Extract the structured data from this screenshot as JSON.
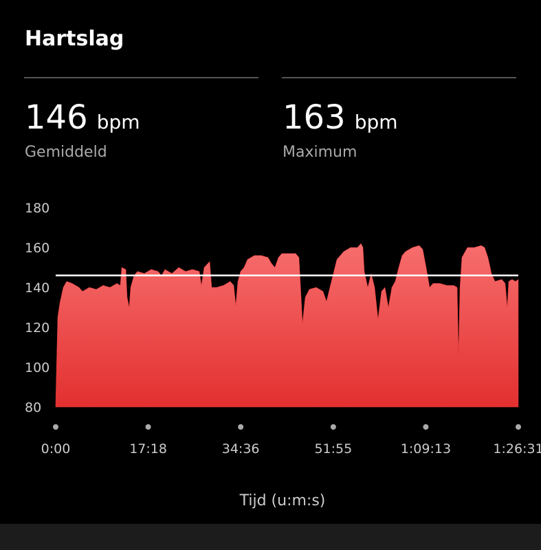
{
  "header": {
    "title": "Hartslag"
  },
  "stats": [
    {
      "value": 146,
      "unit": "bpm",
      "label": "Gemiddeld"
    },
    {
      "value": 163,
      "unit": "bpm",
      "label": "Maximum"
    }
  ],
  "chart_data": {
    "type": "area",
    "x_label": "Tijd (u:m:s)",
    "color": "#e8393b",
    "xlim": [
      0,
      5191
    ],
    "xticks": [
      {
        "value": 0,
        "label": "0:00"
      },
      {
        "value": 1038,
        "label": "17:18"
      },
      {
        "value": 2076,
        "label": "34:36"
      },
      {
        "value": 3115,
        "label": "51:55"
      },
      {
        "value": 4153,
        "label": "1:09:13"
      },
      {
        "value": 5191,
        "label": "1:26:31"
      }
    ],
    "ylim": [
      80,
      180
    ],
    "yticks": [
      80,
      100,
      120,
      140,
      160,
      180
    ],
    "x": [
      0,
      23,
      46,
      85,
      123,
      185,
      262,
      301,
      378,
      455,
      532,
      609,
      687,
      725,
      741,
      787,
      802,
      825,
      841,
      879,
      918,
      995,
      1072,
      1149,
      1188,
      1226,
      1304,
      1381,
      1458,
      1535,
      1612,
      1635,
      1666,
      1728,
      1751,
      1805,
      1882,
      1959,
      1998,
      2021,
      2044,
      2075,
      2113,
      2152,
      2229,
      2306,
      2383,
      2422,
      2460,
      2499,
      2538,
      2615,
      2692,
      2730,
      2754,
      2769,
      2800,
      2846,
      2923,
      3000,
      3039,
      3077,
      3116,
      3155,
      3232,
      3309,
      3386,
      3425,
      3448,
      3463,
      3502,
      3540,
      3579,
      3617,
      3656,
      3695,
      3733,
      3772,
      3810,
      3849,
      3887,
      3926,
      4003,
      4080,
      4119,
      4157,
      4196,
      4234,
      4311,
      4389,
      4466,
      4505,
      4520,
      4536,
      4558,
      4620,
      4697,
      4774,
      4813,
      4851,
      4890,
      4929,
      5006,
      5044,
      5067,
      5083,
      5121,
      5160,
      5191
    ],
    "values": [
      82,
      125,
      132,
      140,
      143,
      142,
      140,
      138,
      140,
      139,
      141,
      140,
      142,
      141,
      150,
      149,
      135,
      130,
      140,
      146,
      148,
      147,
      149,
      148,
      146,
      149,
      147,
      150,
      148,
      149,
      148,
      141,
      150,
      153,
      140,
      140,
      141,
      143,
      141,
      131,
      143,
      148,
      150,
      154,
      156,
      156,
      155,
      152,
      150,
      155,
      157,
      157,
      157,
      155,
      135,
      122,
      135,
      139,
      140,
      138,
      133,
      140,
      147,
      154,
      158,
      160,
      160,
      162,
      160,
      148,
      140,
      147,
      140,
      124,
      138,
      140,
      130,
      140,
      143,
      150,
      156,
      158,
      160,
      161,
      159,
      150,
      140,
      142,
      142,
      141,
      141,
      140,
      106,
      140,
      155,
      160,
      160,
      161,
      160,
      155,
      147,
      143,
      144,
      142,
      130,
      143,
      144,
      143,
      144
    ]
  }
}
